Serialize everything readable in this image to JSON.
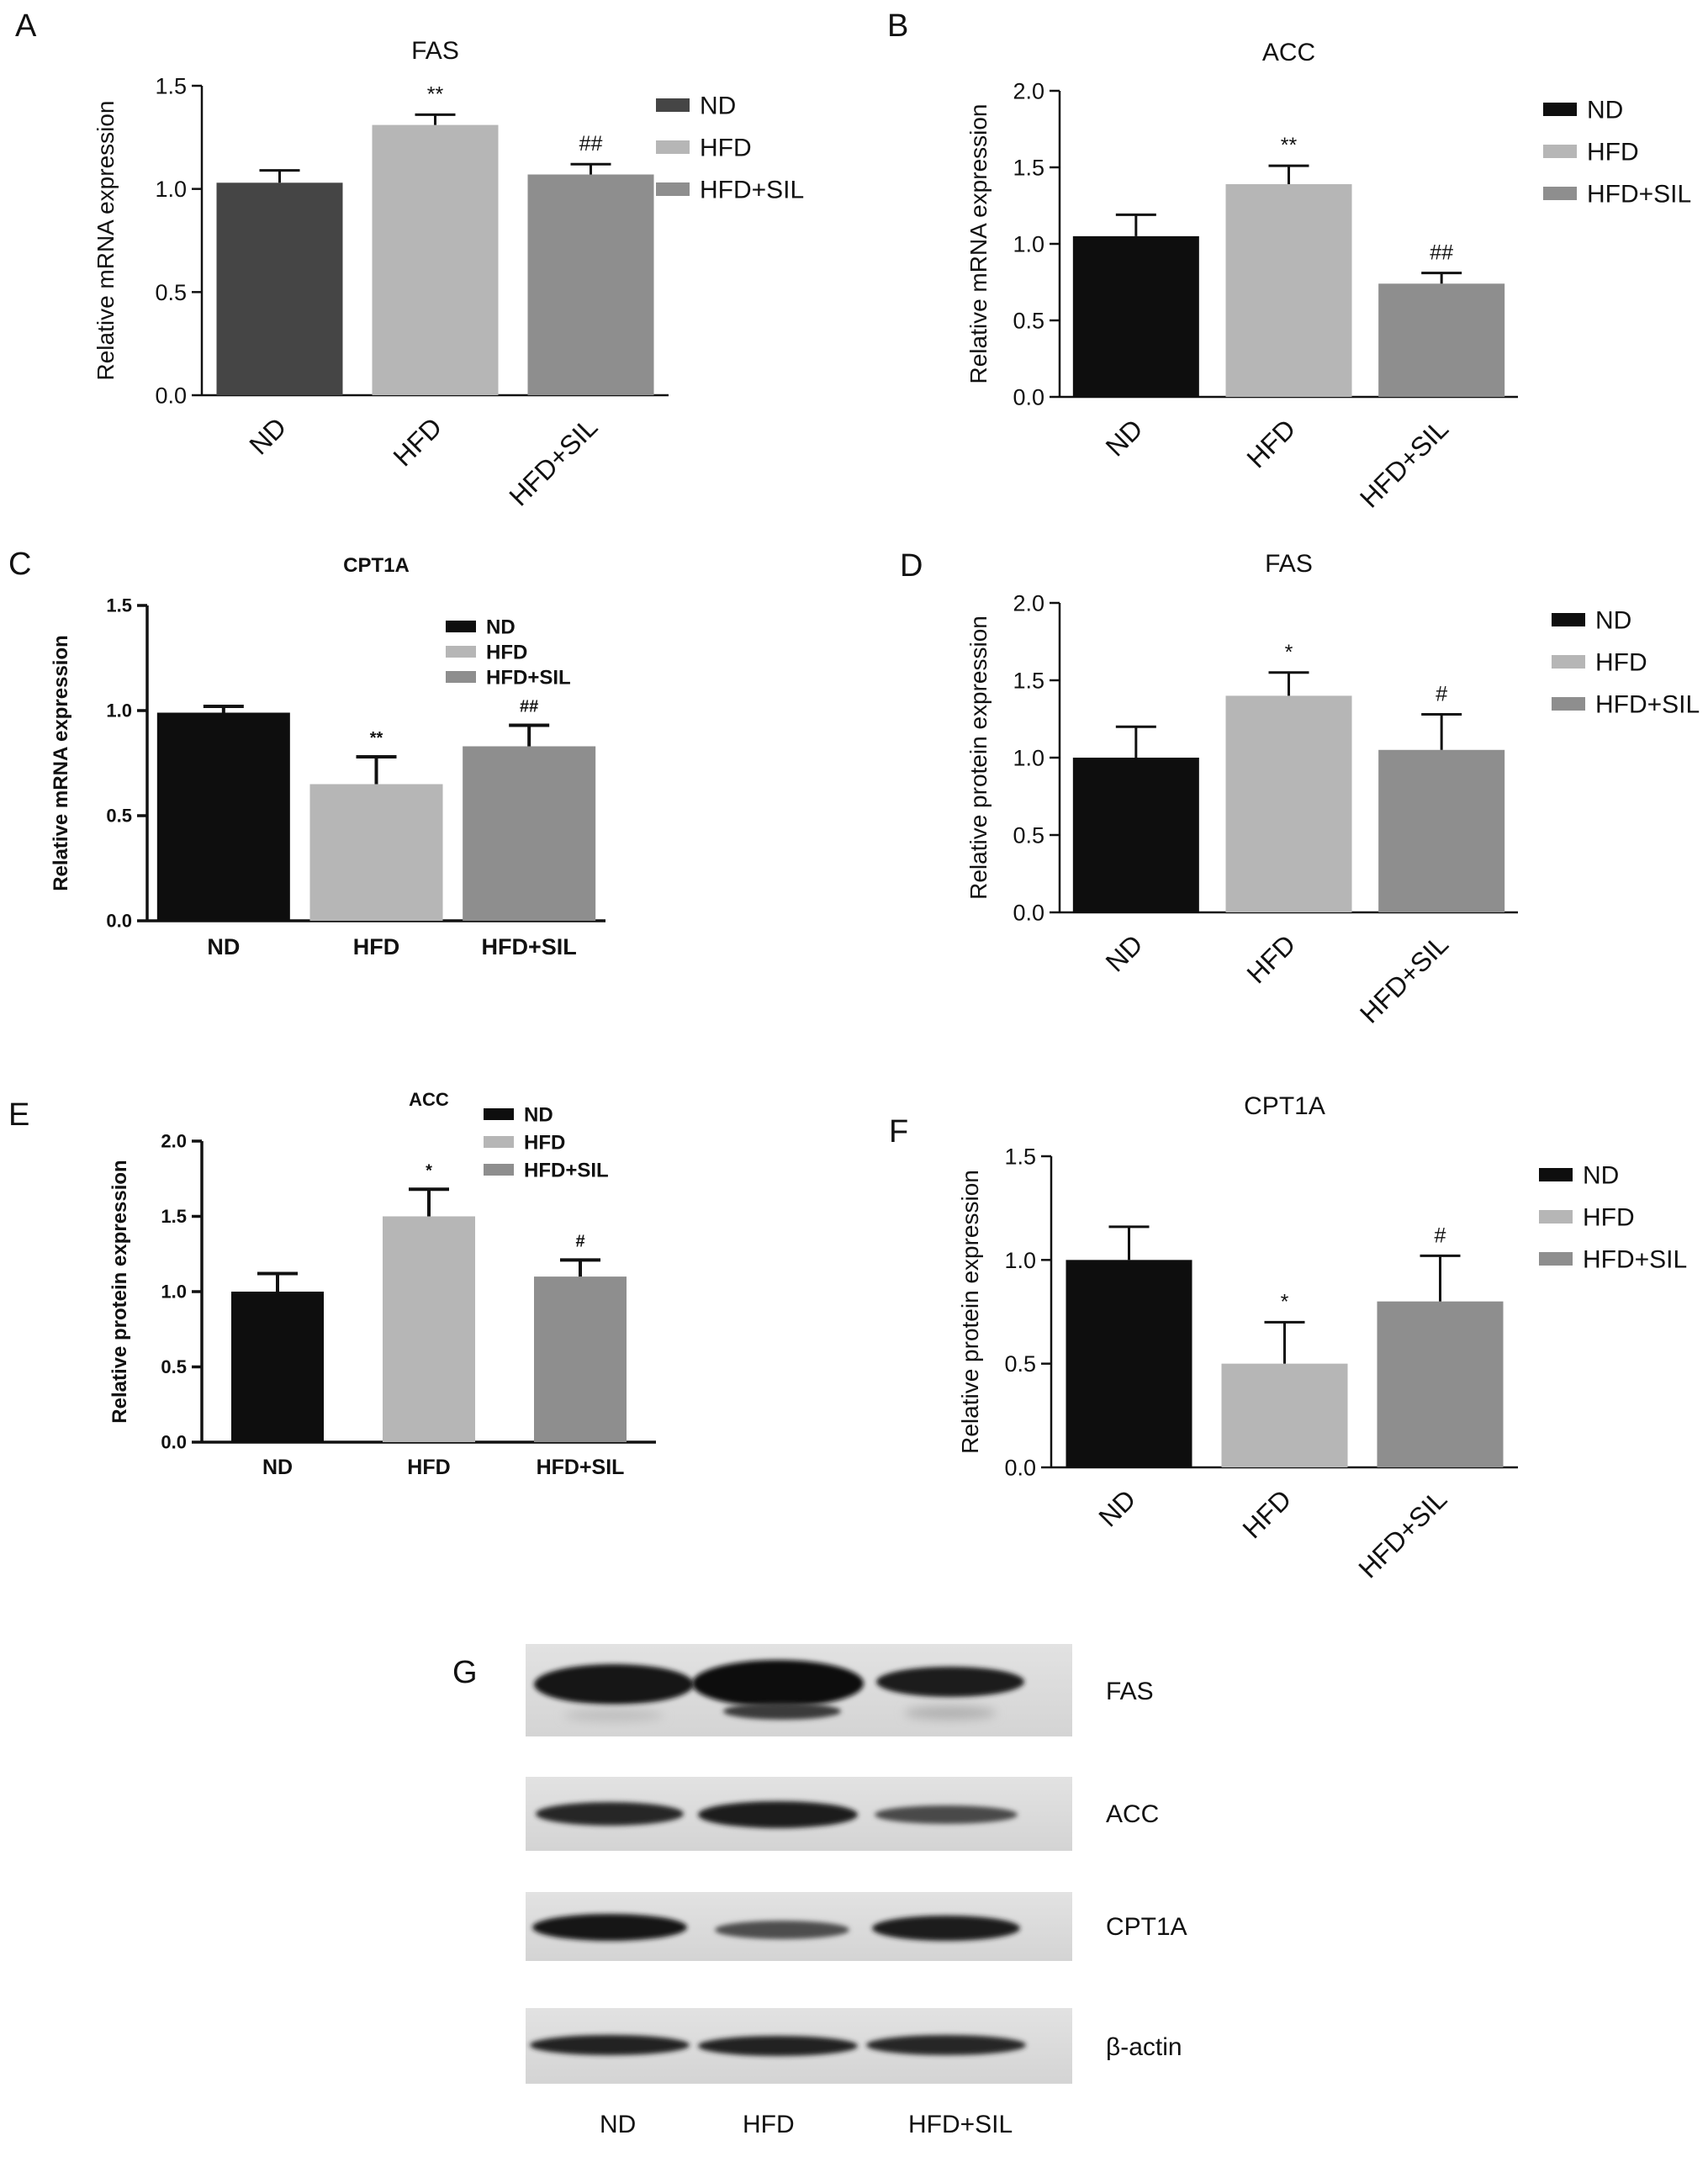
{
  "colors": {
    "nd": "#0e0e0e",
    "nd_a": "#454545",
    "hfd": "#b6b6b6",
    "hfdsil": "#8e8e8e",
    "axis": "#111111"
  },
  "chart_data": [
    {
      "letter": "A",
      "type": "bar",
      "title": "FAS",
      "ylabel": "Relative mRNA expression",
      "categories": [
        "ND",
        "HFD",
        "HFD+SIL"
      ],
      "values": [
        1.03,
        1.31,
        1.07
      ],
      "errors": [
        0.06,
        0.05,
        0.05
      ],
      "annotations": [
        "",
        "**",
        "##"
      ],
      "ylim": [
        0,
        1.5
      ],
      "ticks": [
        "0.0",
        "0.5",
        "1.0",
        "1.5"
      ],
      "legend": [
        "ND",
        "HFD",
        "HFD+SIL"
      ],
      "legend_placement": "right",
      "rotated_labels": true,
      "bold": false,
      "bar_colors": [
        "#454545",
        "#b6b6b6",
        "#8e8e8e"
      ]
    },
    {
      "letter": "B",
      "type": "bar",
      "title": "ACC",
      "ylabel": "Relative mRNA expression",
      "categories": [
        "ND",
        "HFD",
        "HFD+SIL"
      ],
      "values": [
        1.05,
        1.39,
        0.74
      ],
      "errors": [
        0.14,
        0.12,
        0.07
      ],
      "annotations": [
        "",
        "**",
        "##"
      ],
      "ylim": [
        0,
        2.0
      ],
      "ticks": [
        "0.0",
        "0.5",
        "1.0",
        "1.5",
        "2.0"
      ],
      "legend": [
        "ND",
        "HFD",
        "HFD+SIL"
      ],
      "legend_placement": "right",
      "rotated_labels": true,
      "bold": false,
      "bar_colors": [
        "#0e0e0e",
        "#b6b6b6",
        "#8e8e8e"
      ]
    },
    {
      "letter": "C",
      "type": "bar",
      "title": "CPT1A",
      "ylabel": "Relative mRNA expression",
      "categories": [
        "ND",
        "HFD",
        "HFD+SIL"
      ],
      "values": [
        0.99,
        0.65,
        0.83
      ],
      "errors": [
        0.03,
        0.13,
        0.1
      ],
      "annotations": [
        "",
        "**",
        "##"
      ],
      "ylim": [
        0,
        1.5
      ],
      "ticks": [
        "0.0",
        "0.5",
        "1.0",
        "1.5"
      ],
      "legend": [
        "ND",
        "HFD",
        "HFD+SIL"
      ],
      "legend_placement": "top-right",
      "rotated_labels": false,
      "bold": true,
      "bar_colors": [
        "#0e0e0e",
        "#b6b6b6",
        "#8e8e8e"
      ]
    },
    {
      "letter": "D",
      "type": "bar",
      "title": "FAS",
      "ylabel": "Relative protein expression",
      "categories": [
        "ND",
        "HFD",
        "HFD+SIL"
      ],
      "values": [
        1.0,
        1.4,
        1.05
      ],
      "errors": [
        0.2,
        0.15,
        0.23
      ],
      "annotations": [
        "",
        "*",
        "#"
      ],
      "ylim": [
        0,
        2.0
      ],
      "ticks": [
        "0.0",
        "0.5",
        "1.0",
        "1.5",
        "2.0"
      ],
      "legend": [
        "ND",
        "HFD",
        "HFD+SIL"
      ],
      "legend_placement": "right",
      "rotated_labels": true,
      "bold": false,
      "bar_colors": [
        "#0e0e0e",
        "#b6b6b6",
        "#8e8e8e"
      ]
    },
    {
      "letter": "E",
      "type": "bar",
      "title": "ACC",
      "ylabel": "Relative protein expression",
      "categories": [
        "ND",
        "HFD",
        "HFD+SIL"
      ],
      "values": [
        1.0,
        1.5,
        1.1
      ],
      "errors": [
        0.12,
        0.18,
        0.11
      ],
      "annotations": [
        "",
        "*",
        "#"
      ],
      "ylim": [
        0,
        2.0
      ],
      "ticks": [
        "0.0",
        "0.5",
        "1.0",
        "1.5",
        "2.0"
      ],
      "legend": [
        "ND",
        "HFD",
        "HFD+SIL"
      ],
      "legend_placement": "top-right",
      "rotated_labels": false,
      "bold": true,
      "bar_colors": [
        "#0e0e0e",
        "#b6b6b6",
        "#8e8e8e"
      ]
    },
    {
      "letter": "F",
      "type": "bar",
      "title": "CPT1A",
      "ylabel": "Relative protein expression",
      "categories": [
        "ND",
        "HFD",
        "HFD+SIL"
      ],
      "values": [
        1.0,
        0.5,
        0.8
      ],
      "errors": [
        0.16,
        0.2,
        0.22
      ],
      "annotations": [
        "",
        "*",
        "#"
      ],
      "ylim": [
        0,
        1.5
      ],
      "ticks": [
        "0.0",
        "0.5",
        "1.0",
        "1.5"
      ],
      "legend": [
        "ND",
        "HFD",
        "HFD+SIL"
      ],
      "legend_placement": "right",
      "rotated_labels": true,
      "bold": false,
      "bar_colors": [
        "#0e0e0e",
        "#b6b6b6",
        "#8e8e8e"
      ]
    }
  ],
  "blot": {
    "letter": "G",
    "proteins": [
      "FAS",
      "ACC",
      "CPT1A",
      "β-actin"
    ],
    "lanes": [
      "ND",
      "HFD",
      "HFD+SIL"
    ]
  }
}
